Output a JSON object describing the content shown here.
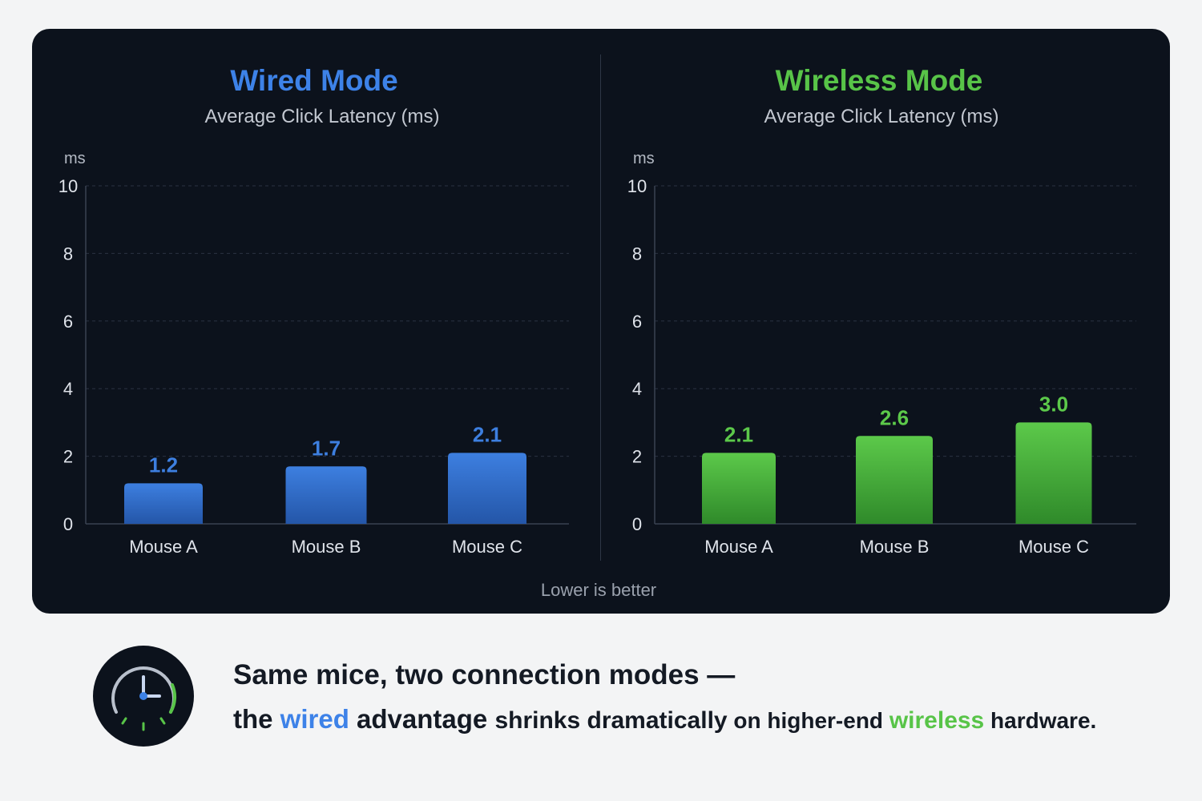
{
  "chart_data": [
    {
      "type": "bar",
      "title": "Wired Mode",
      "subtitle": "Average Click Latency (ms)",
      "ylabel": "ms",
      "categories": [
        "Mouse A",
        "Mouse B",
        "Mouse C"
      ],
      "values": [
        1.2,
        1.7,
        2.1
      ],
      "value_labels": [
        "1.2",
        "1.7",
        "2.1"
      ],
      "ylim": [
        0,
        10
      ],
      "yticks": [
        0,
        2,
        4,
        6,
        8,
        10
      ],
      "grid": true,
      "color": "#3d7fe0",
      "color_dark": "#2456a8"
    },
    {
      "type": "bar",
      "title": "Wireless Mode",
      "subtitle": "Average Click Latency (ms)",
      "ylabel": "ms",
      "categories": [
        "Mouse A",
        "Mouse B",
        "Mouse C"
      ],
      "values": [
        2.1,
        2.6,
        3.0
      ],
      "value_labels": [
        "2.1",
        "2.6",
        "3.0"
      ],
      "ylim": [
        0,
        10
      ],
      "yticks": [
        0,
        2,
        4,
        6,
        8,
        10
      ],
      "grid": true,
      "color": "#5cc94a",
      "color_dark": "#2f8a2a"
    }
  ],
  "footnote": "Lower is better",
  "summary": {
    "icon": "stopwatch-icon",
    "headline": "Same mice, two connection modes —",
    "tagline": {
      "p1": "the ",
      "wired": "wired",
      "p2": " advantage ",
      "p3": "shrinks dramatically",
      "p4": " on higher-end ",
      "wireless": "wireless",
      "p5": " hardware."
    }
  },
  "colors": {
    "panel": "#0c121c",
    "wired": "#3d82e8",
    "wireless": "#58c448",
    "text_dark": "#141a24"
  }
}
